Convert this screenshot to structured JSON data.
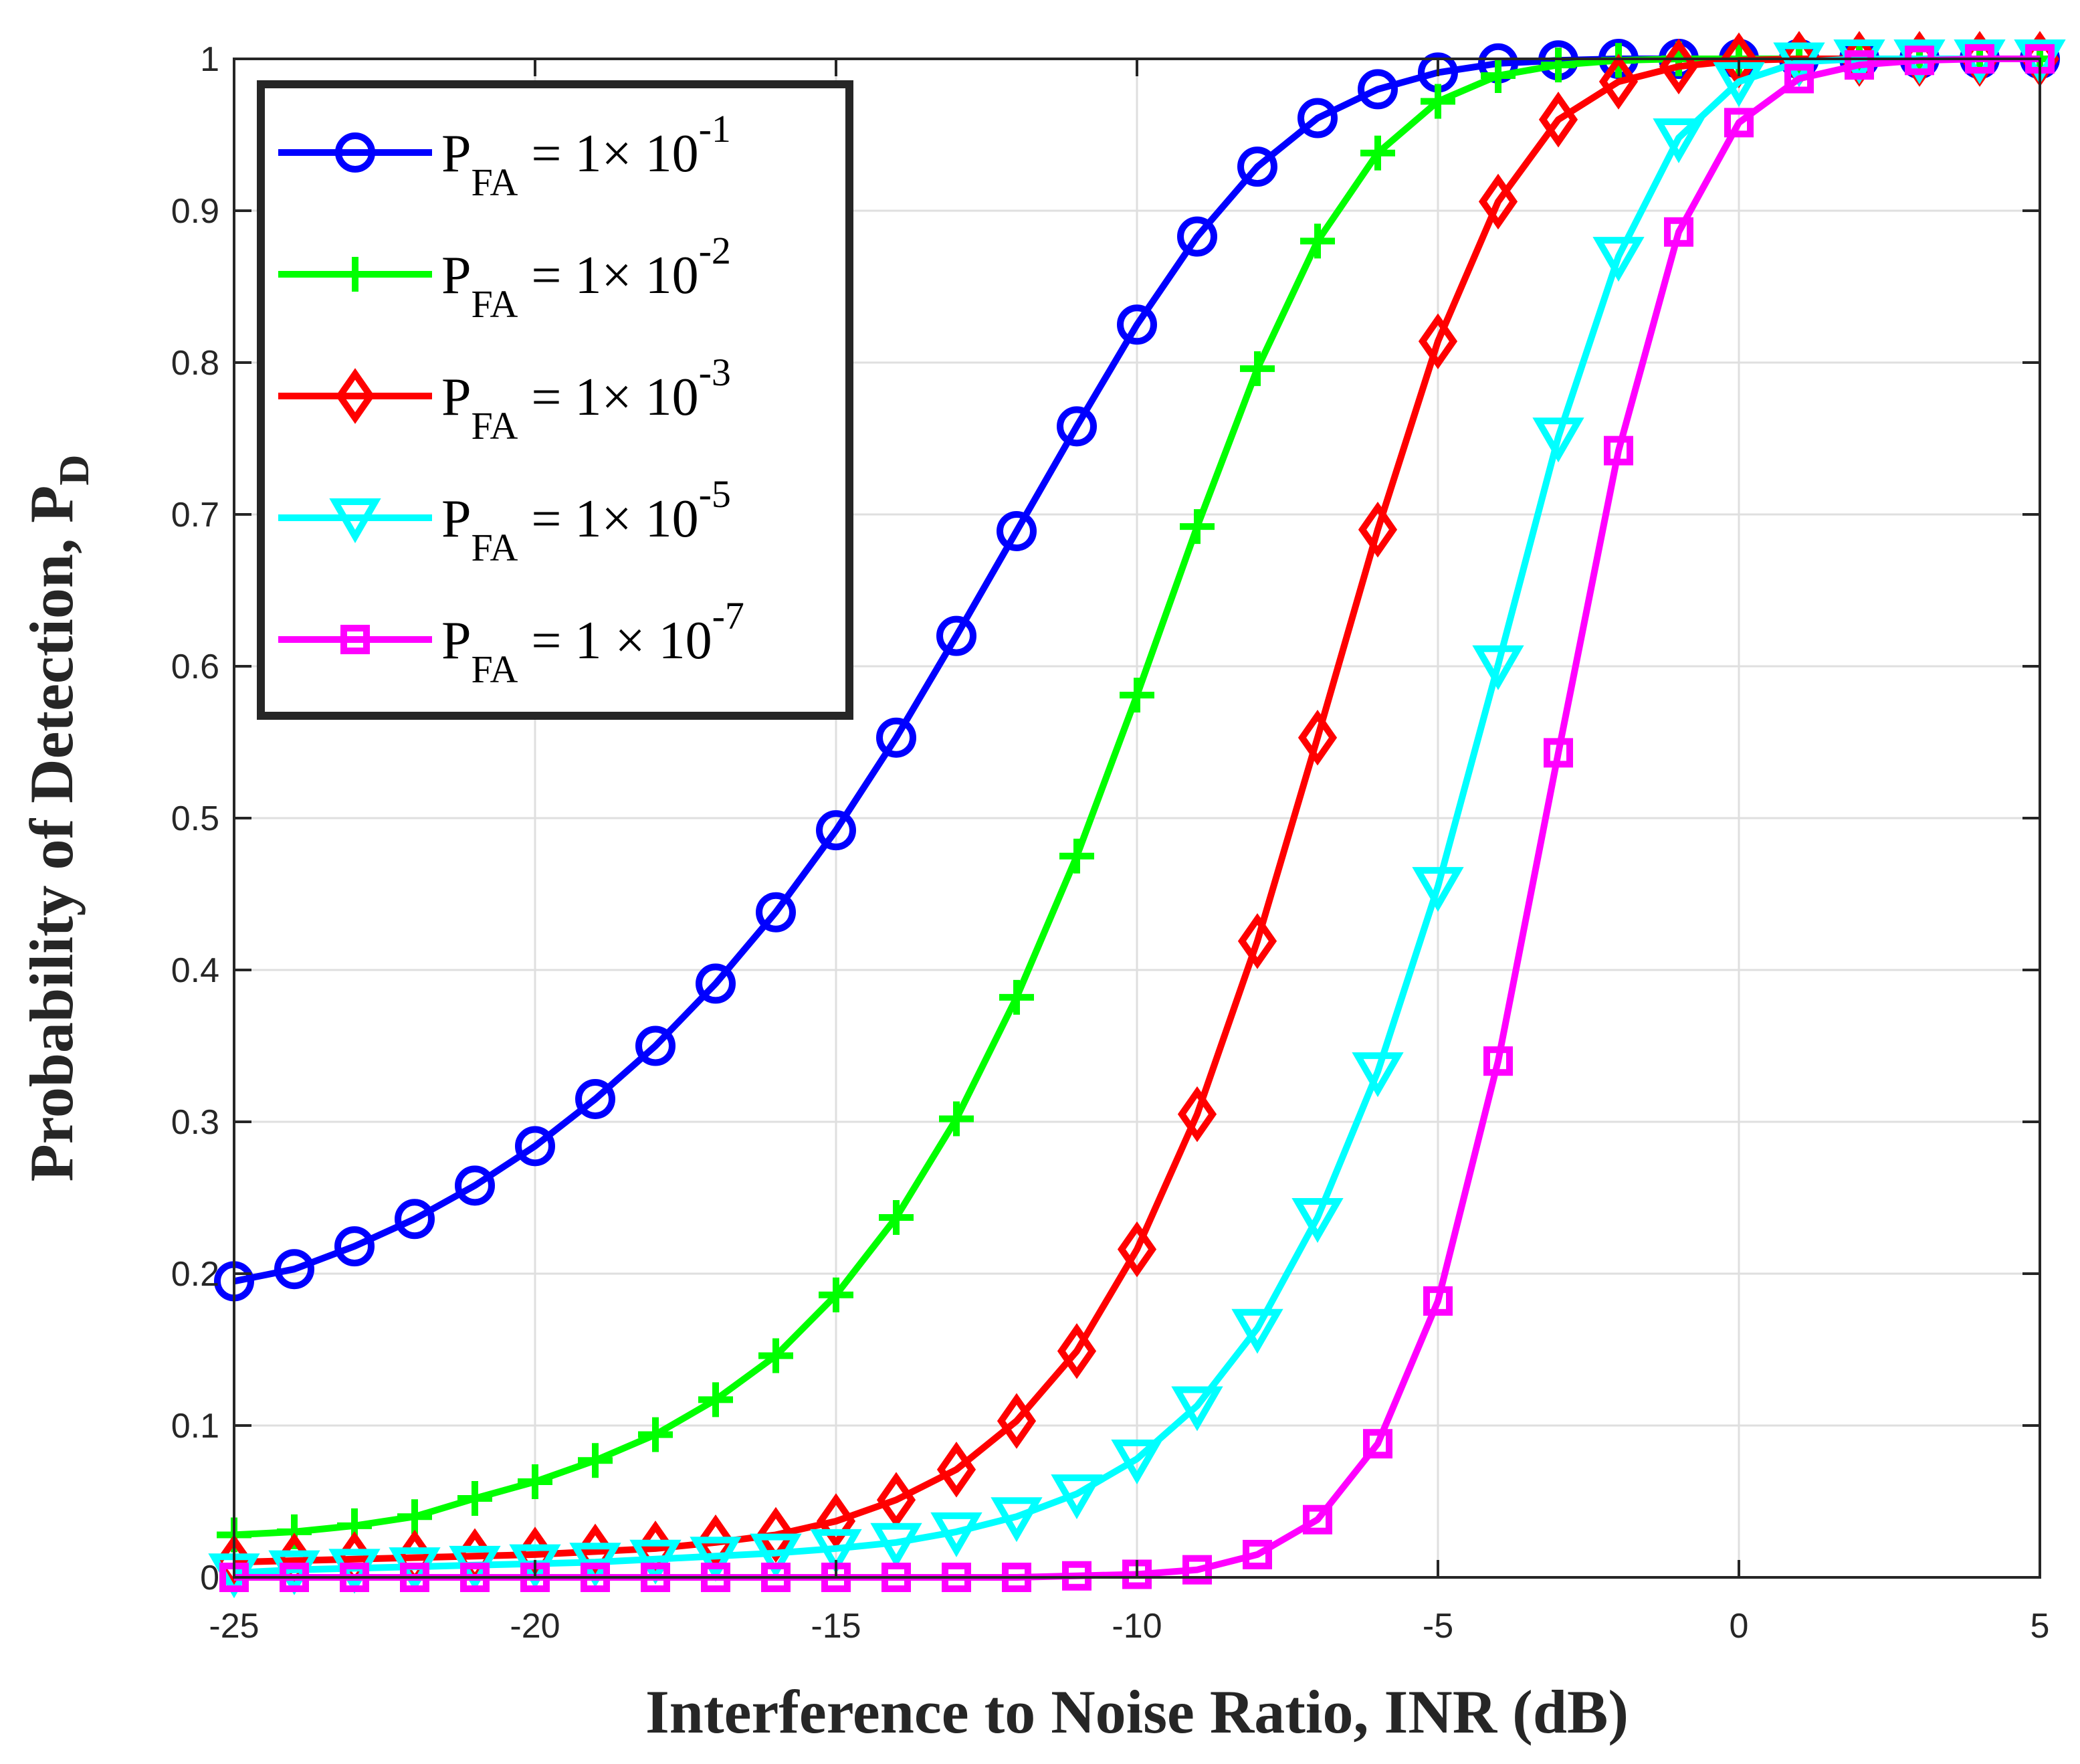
{
  "chart_data": {
    "type": "line",
    "title": "",
    "xlabel": "Interference to Noise Ratio, INR (dB)",
    "ylabel": "Probability of Detection, P",
    "ylabel_subscript": "D",
    "xlim": [
      -25,
      5
    ],
    "ylim": [
      0,
      1
    ],
    "grid": true,
    "xticks": [
      -25,
      -20,
      -15,
      -10,
      -5,
      0,
      5
    ],
    "xtick_labels": [
      "-25",
      "-20",
      "-15",
      "-10",
      "-5",
      "0",
      "5"
    ],
    "yticks": [
      0,
      0.1,
      0.2,
      0.3,
      0.4,
      0.5,
      0.6,
      0.7,
      0.8,
      0.9,
      1
    ],
    "ytick_labels": [
      "0",
      "0.1",
      "0.2",
      "0.3",
      "0.4",
      "0.5",
      "0.6",
      "0.7",
      "0.8",
      "0.9",
      "1"
    ],
    "legend_position": "top-left",
    "x": [
      -25,
      -24,
      -23,
      -22,
      -21,
      -20,
      -19,
      -18,
      -17,
      -16,
      -15,
      -14,
      -13,
      -12,
      -11,
      -10,
      -9,
      -8,
      -7,
      -6,
      -5,
      -4,
      -3,
      -2,
      -1,
      0,
      1,
      2,
      3,
      4,
      5
    ],
    "series": [
      {
        "name": "PFA = 1× 10-1",
        "legend": {
          "main": "P",
          "sub": "FA",
          "mid": " = 1× 10",
          "sup": "-1"
        },
        "color": "#0000ff",
        "marker": "circle",
        "values": [
          0.195,
          0.203,
          0.218,
          0.236,
          0.258,
          0.284,
          0.315,
          0.35,
          0.391,
          0.438,
          0.492,
          0.553,
          0.62,
          0.689,
          0.758,
          0.825,
          0.883,
          0.929,
          0.961,
          0.98,
          0.991,
          0.997,
          0.999,
          1.0,
          1.0,
          1.0,
          1.0,
          1.0,
          1.0,
          1.0,
          1.0
        ]
      },
      {
        "name": "PFA = 1× 10-2",
        "legend": {
          "main": "P",
          "sub": "FA",
          "mid": " = 1× 10",
          "sup": "-2"
        },
        "color": "#00ff00",
        "marker": "plus",
        "values": [
          0.028,
          0.03,
          0.034,
          0.04,
          0.052,
          0.063,
          0.077,
          0.094,
          0.117,
          0.146,
          0.186,
          0.237,
          0.302,
          0.382,
          0.475,
          0.581,
          0.692,
          0.796,
          0.88,
          0.938,
          0.972,
          0.989,
          0.996,
          0.999,
          1.0,
          1.0,
          1.0,
          1.0,
          1.0,
          1.0,
          1.0
        ]
      },
      {
        "name": "PFA = 1× 10-3",
        "legend": {
          "main": "P",
          "sub": "FA",
          "mid": " = 1× 10",
          "sup": "-3"
        },
        "color": "#ff0000",
        "marker": "diamond",
        "values": [
          0.01,
          0.011,
          0.012,
          0.013,
          0.014,
          0.015,
          0.017,
          0.019,
          0.023,
          0.028,
          0.037,
          0.051,
          0.071,
          0.103,
          0.149,
          0.216,
          0.305,
          0.419,
          0.553,
          0.69,
          0.814,
          0.906,
          0.96,
          0.985,
          0.995,
          0.999,
          1.0,
          1.0,
          1.0,
          1.0,
          1.0
        ]
      },
      {
        "name": "PFA = 1× 10-5",
        "legend": {
          "main": "P",
          "sub": "FA",
          "mid": " = 1× 10",
          "sup": "-5"
        },
        "color": "#00ffff",
        "marker": "triangle-down",
        "values": [
          0.003,
          0.005,
          0.006,
          0.007,
          0.008,
          0.009,
          0.01,
          0.012,
          0.014,
          0.016,
          0.019,
          0.023,
          0.03,
          0.04,
          0.055,
          0.078,
          0.113,
          0.164,
          0.237,
          0.333,
          0.455,
          0.601,
          0.751,
          0.87,
          0.948,
          0.985,
          0.998,
          1.0,
          1.0,
          1.0,
          1.0
        ]
      },
      {
        "name": "PFA = 1 × 10-7",
        "legend": {
          "main": "P",
          "sub": "FA",
          "mid": " = 1 × 10",
          "sup": "-7"
        },
        "color": "#ff00ff",
        "marker": "square",
        "values": [
          0.0,
          0.0,
          0.0,
          0.0,
          0.0,
          0.0,
          0.0,
          0.0,
          0.0,
          0.0,
          0.0,
          0.0,
          0.0,
          0.0,
          0.001,
          0.002,
          0.005,
          0.015,
          0.038,
          0.088,
          0.182,
          0.34,
          0.543,
          0.742,
          0.886,
          0.958,
          0.987,
          0.996,
          0.999,
          1.0,
          1.0
        ]
      }
    ]
  }
}
